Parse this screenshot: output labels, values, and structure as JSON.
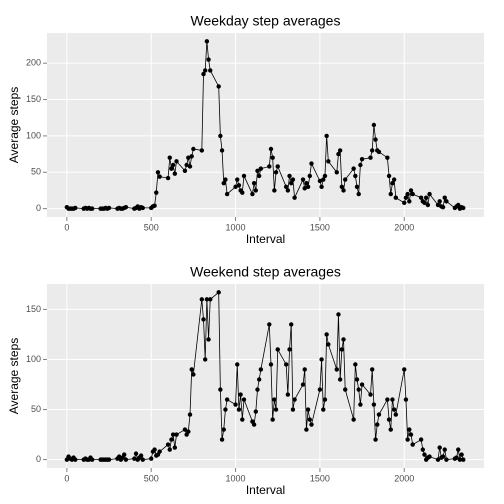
{
  "chart_data": [
    {
      "type": "line",
      "title": "Weekday step averages",
      "x_label": "Interval",
      "y_label": "Average steps",
      "x": [
        0,
        10,
        20,
        30,
        40,
        50,
        100,
        110,
        120,
        130,
        140,
        150,
        200,
        210,
        220,
        230,
        240,
        250,
        300,
        310,
        320,
        330,
        340,
        350,
        400,
        410,
        420,
        430,
        440,
        450,
        500,
        510,
        520,
        530,
        540,
        550,
        600,
        610,
        620,
        630,
        640,
        650,
        700,
        710,
        720,
        730,
        740,
        750,
        800,
        810,
        820,
        830,
        840,
        850,
        900,
        910,
        920,
        930,
        940,
        950,
        1000,
        1010,
        1020,
        1030,
        1040,
        1050,
        1100,
        1110,
        1120,
        1130,
        1140,
        1150,
        1200,
        1210,
        1220,
        1230,
        1240,
        1250,
        1300,
        1310,
        1320,
        1330,
        1340,
        1350,
        1400,
        1410,
        1420,
        1430,
        1440,
        1450,
        1500,
        1510,
        1520,
        1530,
        1540,
        1550,
        1600,
        1610,
        1620,
        1630,
        1640,
        1650,
        1700,
        1710,
        1720,
        1730,
        1740,
        1750,
        1800,
        1810,
        1820,
        1830,
        1840,
        1850,
        1900,
        1910,
        1920,
        1930,
        1940,
        1950,
        2000,
        2010,
        2020,
        2030,
        2040,
        2050,
        2100,
        2110,
        2120,
        2130,
        2140,
        2150,
        2200,
        2210,
        2220,
        2230,
        2240,
        2250,
        2300,
        2310,
        2320,
        2330,
        2340,
        2350
      ],
      "values": [
        2,
        0,
        0,
        0,
        0,
        1,
        0,
        1,
        0,
        1,
        0,
        0,
        0,
        0,
        0,
        1,
        0,
        1,
        0,
        1,
        0,
        0,
        1,
        2,
        0,
        1,
        3,
        0,
        2,
        1,
        1,
        3,
        4,
        22,
        50,
        44,
        42,
        70,
        55,
        60,
        48,
        65,
        52,
        60,
        70,
        58,
        72,
        82,
        80,
        185,
        190,
        230,
        205,
        190,
        168,
        100,
        80,
        35,
        40,
        20,
        30,
        40,
        32,
        25,
        22,
        45,
        20,
        35,
        25,
        52,
        45,
        55,
        58,
        82,
        70,
        25,
        50,
        58,
        30,
        25,
        45,
        35,
        40,
        15,
        40,
        28,
        35,
        30,
        45,
        62,
        38,
        30,
        40,
        45,
        100,
        65,
        50,
        75,
        80,
        30,
        25,
        40,
        55,
        45,
        30,
        20,
        60,
        68,
        70,
        80,
        115,
        95,
        80,
        78,
        70,
        45,
        20,
        35,
        40,
        15,
        8,
        15,
        20,
        10,
        25,
        20,
        15,
        10,
        8,
        15,
        5,
        20,
        5,
        10,
        3,
        2,
        15,
        10,
        1,
        3,
        5,
        0,
        2,
        1
      ],
      "color": "#000000",
      "xlim": [
        -117.75,
        2472.75
      ],
      "ylim": [
        -11.5,
        241.5
      ],
      "xticks": [
        0,
        500,
        1000,
        1500,
        2000
      ],
      "yticks": [
        0,
        50,
        100,
        150,
        200
      ],
      "grid": true
    },
    {
      "type": "line",
      "title": "Weekend step averages",
      "x_label": "Interval",
      "y_label": "Average steps",
      "x": [
        0,
        10,
        20,
        30,
        40,
        50,
        100,
        110,
        120,
        130,
        140,
        150,
        200,
        210,
        220,
        230,
        240,
        250,
        300,
        310,
        320,
        330,
        340,
        350,
        400,
        410,
        420,
        430,
        440,
        450,
        500,
        510,
        520,
        530,
        540,
        550,
        600,
        610,
        620,
        630,
        640,
        650,
        700,
        710,
        720,
        730,
        740,
        750,
        800,
        810,
        820,
        830,
        840,
        850,
        900,
        910,
        920,
        930,
        940,
        950,
        1000,
        1010,
        1020,
        1030,
        1040,
        1050,
        1100,
        1110,
        1120,
        1130,
        1140,
        1150,
        1200,
        1210,
        1220,
        1230,
        1240,
        1250,
        1300,
        1310,
        1320,
        1330,
        1340,
        1350,
        1400,
        1410,
        1420,
        1430,
        1440,
        1450,
        1500,
        1510,
        1520,
        1530,
        1540,
        1550,
        1600,
        1610,
        1620,
        1630,
        1640,
        1650,
        1700,
        1710,
        1720,
        1730,
        1740,
        1750,
        1800,
        1810,
        1820,
        1830,
        1840,
        1850,
        1900,
        1910,
        1920,
        1930,
        1940,
        1950,
        2000,
        2010,
        2020,
        2030,
        2040,
        2050,
        2100,
        2110,
        2120,
        2130,
        2140,
        2150,
        2200,
        2210,
        2220,
        2230,
        2240,
        2250,
        2300,
        2310,
        2320,
        2330,
        2340,
        2350
      ],
      "values": [
        0,
        3,
        1,
        0,
        2,
        0,
        0,
        1,
        0,
        0,
        2,
        0,
        0,
        0,
        0,
        0,
        0,
        0,
        1,
        3,
        0,
        2,
        5,
        0,
        1,
        6,
        0,
        2,
        4,
        0,
        1,
        8,
        10,
        4,
        5,
        8,
        15,
        10,
        20,
        25,
        12,
        25,
        30,
        25,
        28,
        45,
        90,
        85,
        160,
        140,
        100,
        160,
        120,
        160,
        167,
        70,
        20,
        30,
        50,
        60,
        55,
        95,
        50,
        65,
        40,
        60,
        38,
        35,
        48,
        70,
        80,
        90,
        135,
        95,
        40,
        60,
        50,
        110,
        95,
        65,
        110,
        135,
        50,
        60,
        75,
        90,
        30,
        50,
        40,
        35,
        70,
        100,
        50,
        60,
        125,
        115,
        90,
        145,
        80,
        110,
        120,
        70,
        40,
        95,
        80,
        70,
        55,
        75,
        65,
        90,
        55,
        20,
        35,
        45,
        60,
        40,
        30,
        60,
        50,
        45,
        90,
        60,
        20,
        30,
        25,
        15,
        20,
        10,
        5,
        0,
        2,
        3,
        0,
        12,
        2,
        3,
        10,
        0,
        1,
        2,
        10,
        0,
        5,
        0
      ],
      "color": "#000000",
      "xlim": [
        -117.75,
        2472.75
      ],
      "ylim": [
        -8.35,
        175.35
      ],
      "xticks": [
        0,
        500,
        1000,
        1500,
        2000
      ],
      "yticks": [
        0,
        50,
        100,
        150
      ],
      "grid": true
    }
  ]
}
